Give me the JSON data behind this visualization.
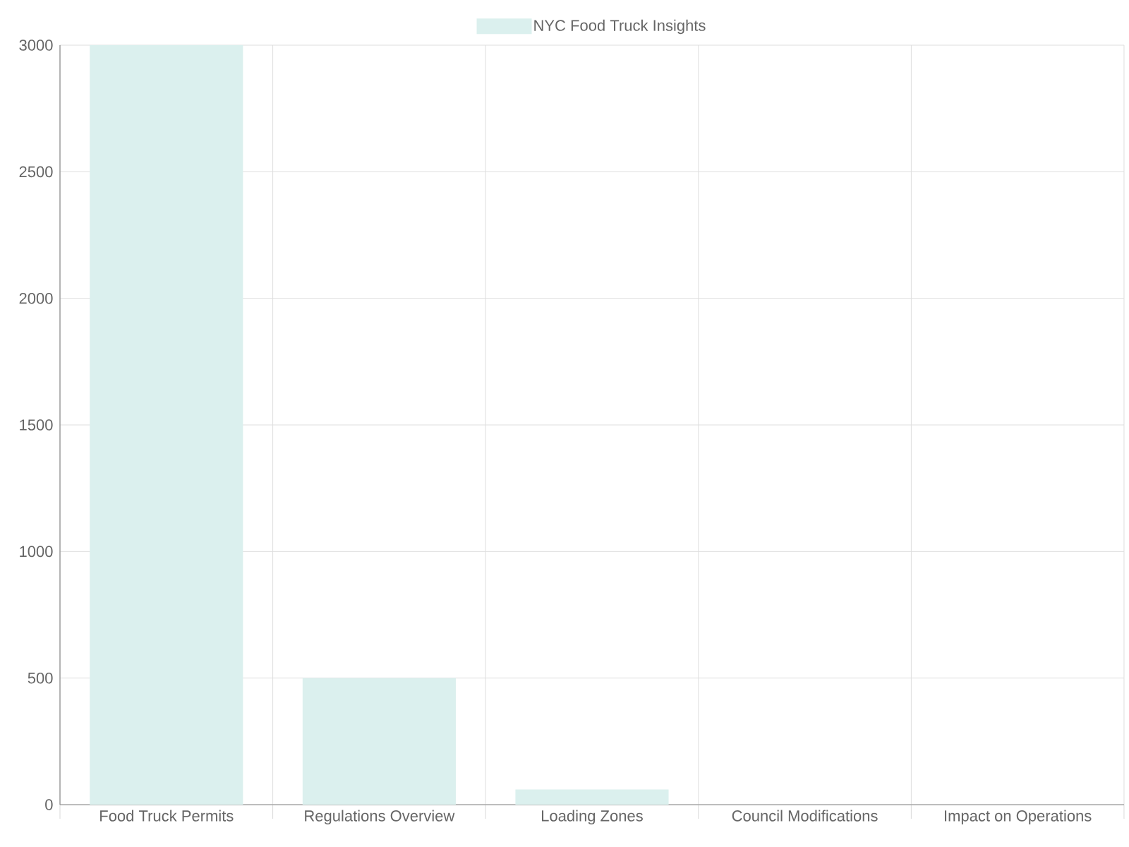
{
  "chart_data": {
    "type": "bar",
    "categories": [
      "Food Truck Permits",
      "Regulations Overview",
      "Loading Zones",
      "Council Modifications",
      "Impact on Operations"
    ],
    "series": [
      {
        "name": "NYC Food Truck Insights",
        "color": "#dbf0ee",
        "values": [
          3000,
          500,
          60,
          null,
          null
        ]
      }
    ],
    "ylim": [
      0,
      3000
    ],
    "yticks": [
      0,
      500,
      1000,
      1500,
      2000,
      2500,
      3000
    ],
    "grid": true,
    "legend": "top"
  }
}
